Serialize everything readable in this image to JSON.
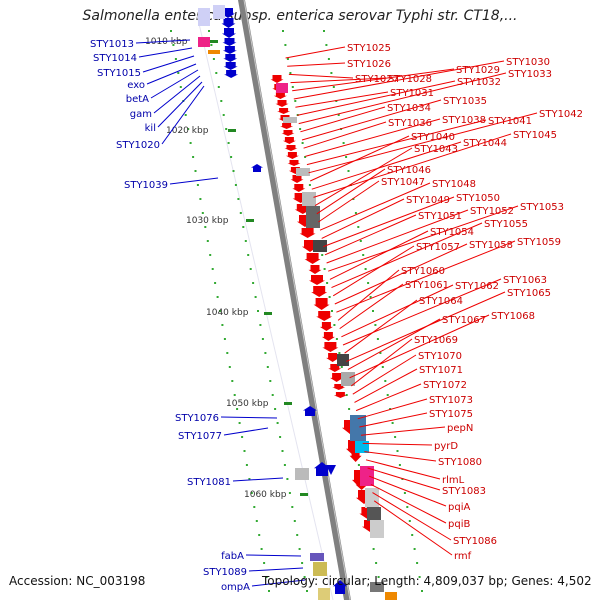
{
  "title": "Salmonella enterica subsp. enterica serovar Typhi str. CT18,...",
  "accession_label": "Accession: NC_003198",
  "summary": "Topology: circular; Length: 4,809,037 bp; Genes: 4,502",
  "colors": {
    "minus_strand_genes": "#0000cc",
    "plus_strand_genes": "#ee0000",
    "backbone": "#808080",
    "kbp_tick": "#228822",
    "dot": "#33aa33"
  },
  "kbp_ticks": [
    "1010 kbp",
    "1020 kbp",
    "1030 kbp",
    "1040 kbp",
    "1050 kbp",
    "1060 kbp"
  ],
  "left_genes": [
    "STY1013",
    "STY1014",
    "STY1015",
    "exo",
    "betA",
    "gam",
    "kil",
    "STY1020",
    "STY1039",
    "STY1076",
    "STY1077",
    "STY1081",
    "fabA",
    "STY1089",
    "ompA"
  ],
  "right_genes": [
    "STY1025",
    "STY1026",
    "STY1027",
    "STY1028",
    "STY1029",
    "STY1030",
    "STY1031",
    "STY1032",
    "STY1033",
    "STY1034",
    "STY1035",
    "STY1036",
    "STY1038",
    "STY1041",
    "STY1042",
    "STY1040",
    "STY1044",
    "STY1045",
    "STY1043",
    "STY1046",
    "STY1047",
    "STY1048",
    "STY1049",
    "STY1050",
    "STY1051",
    "STY1052",
    "STY1053",
    "STY1054",
    "STY1055",
    "STY1057",
    "STY1058",
    "STY1059",
    "STY1060",
    "STY1061",
    "STY1062",
    "STY1063",
    "STY1064",
    "STY1065",
    "STY1067",
    "STY1068",
    "STY1069",
    "STY1070",
    "STY1071",
    "STY1072",
    "STY1073",
    "STY1075",
    "pepN",
    "pyrD",
    "STY1080",
    "rlmL",
    "STY1083",
    "pqiA",
    "pqiB",
    "STY1086",
    "rmf"
  ]
}
